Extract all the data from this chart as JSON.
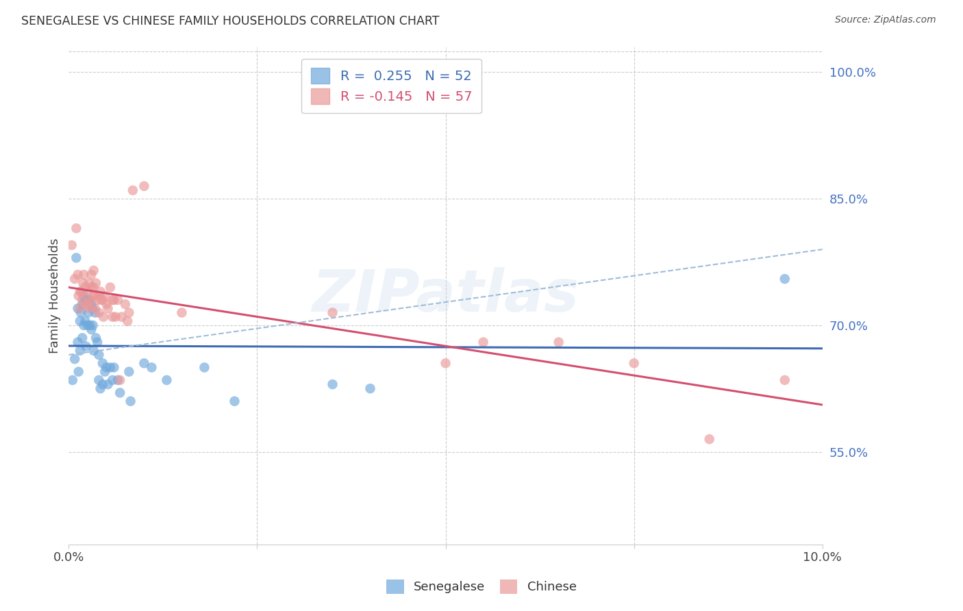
{
  "title": "SENEGALESE VS CHINESE FAMILY HOUSEHOLDS CORRELATION CHART",
  "source": "Source: ZipAtlas.com",
  "ylabel": "Family Households",
  "watermark": "ZIPatlas",
  "senegalese_color": "#6fa8dc",
  "chinese_color": "#ea9999",
  "senegalese_line_color": "#3d6bb3",
  "chinese_line_color": "#d44f6e",
  "dashed_line_color": "#a0bcd8",
  "right_axis_color": "#4472c4",
  "background_color": "#ffffff",
  "grid_color": "#cccccc",
  "xlim": [
    0.0,
    10.0
  ],
  "ylim": [
    44.0,
    103.0
  ],
  "right_yticks": [
    55.0,
    70.0,
    85.0,
    100.0
  ],
  "senegalese_x": [
    0.05,
    0.08,
    0.1,
    0.12,
    0.12,
    0.13,
    0.15,
    0.15,
    0.16,
    0.18,
    0.18,
    0.2,
    0.2,
    0.22,
    0.22,
    0.23,
    0.25,
    0.25,
    0.26,
    0.28,
    0.28,
    0.3,
    0.3,
    0.32,
    0.32,
    0.33,
    0.35,
    0.36,
    0.38,
    0.4,
    0.4,
    0.42,
    0.45,
    0.45,
    0.48,
    0.5,
    0.52,
    0.55,
    0.58,
    0.6,
    0.65,
    0.68,
    0.8,
    0.82,
    1.0,
    1.1,
    1.3,
    1.8,
    2.2,
    3.5,
    4.0,
    9.5
  ],
  "senegalese_y": [
    63.5,
    66.0,
    78.0,
    72.0,
    68.0,
    64.5,
    70.5,
    67.0,
    71.5,
    72.5,
    68.5,
    73.5,
    70.0,
    73.0,
    70.5,
    67.5,
    73.0,
    70.0,
    71.5,
    73.0,
    70.0,
    72.5,
    69.5,
    72.0,
    70.0,
    67.0,
    71.5,
    68.5,
    68.0,
    66.5,
    63.5,
    62.5,
    65.5,
    63.0,
    64.5,
    65.0,
    63.0,
    65.0,
    63.5,
    65.0,
    63.5,
    62.0,
    64.5,
    61.0,
    65.5,
    65.0,
    63.5,
    65.0,
    61.0,
    63.0,
    62.5,
    75.5
  ],
  "chinese_x": [
    0.04,
    0.08,
    0.1,
    0.12,
    0.13,
    0.15,
    0.15,
    0.17,
    0.18,
    0.19,
    0.2,
    0.22,
    0.23,
    0.25,
    0.25,
    0.27,
    0.28,
    0.28,
    0.3,
    0.3,
    0.32,
    0.33,
    0.33,
    0.35,
    0.35,
    0.36,
    0.38,
    0.4,
    0.4,
    0.42,
    0.43,
    0.45,
    0.46,
    0.48,
    0.5,
    0.52,
    0.55,
    0.58,
    0.58,
    0.6,
    0.62,
    0.65,
    0.68,
    0.7,
    0.75,
    0.78,
    0.8,
    0.85,
    1.0,
    1.5,
    3.5,
    5.0,
    5.5,
    6.5,
    7.5,
    8.5,
    9.5
  ],
  "chinese_y": [
    79.5,
    75.5,
    81.5,
    76.0,
    73.5,
    74.0,
    72.0,
    74.0,
    73.0,
    75.0,
    76.0,
    74.5,
    72.5,
    74.0,
    72.5,
    75.0,
    73.0,
    72.0,
    76.0,
    74.5,
    73.5,
    76.5,
    74.5,
    73.5,
    72.0,
    75.0,
    73.0,
    73.5,
    71.5,
    74.0,
    73.0,
    73.0,
    71.0,
    73.5,
    72.5,
    72.0,
    74.5,
    73.0,
    71.0,
    73.0,
    71.0,
    73.0,
    63.5,
    71.0,
    72.5,
    70.5,
    71.5,
    86.0,
    86.5,
    71.5,
    71.5,
    65.5,
    68.0,
    68.0,
    65.5,
    56.5,
    63.5
  ],
  "figsize": [
    14.06,
    8.92
  ],
  "dpi": 100
}
